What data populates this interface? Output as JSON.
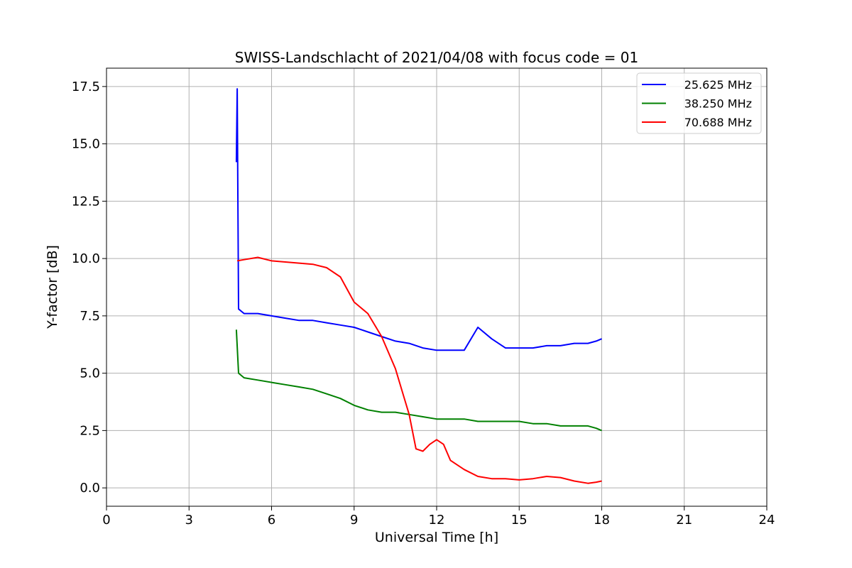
{
  "chart_data": {
    "type": "line",
    "title": "SWISS-Landschlacht of 2021/04/08 with focus code = 01",
    "xlabel": "Universal Time [h]",
    "ylabel": "Y-factor [dB]",
    "xlim": [
      0,
      24
    ],
    "ylim": [
      -0.8,
      18.3
    ],
    "xticks": [
      0,
      3,
      6,
      9,
      12,
      15,
      18,
      21,
      24
    ],
    "xtick_labels": [
      "0",
      "3",
      "6",
      "9",
      "12",
      "15",
      "18",
      "21",
      "24"
    ],
    "yticks": [
      0,
      2.5,
      5,
      7.5,
      10,
      12.5,
      15,
      17.5
    ],
    "ytick_labels": [
      "0.0",
      "2.5",
      "5.0",
      "7.5",
      "10.0",
      "12.5",
      "15.0",
      "17.5"
    ],
    "grid": true,
    "legend_position": "top-right",
    "series": [
      {
        "name": "25.625 MHz",
        "color": "#0000ff",
        "x": [
          4.72,
          4.75,
          4.8,
          5.0,
          5.5,
          6.0,
          6.5,
          7.0,
          7.5,
          8.0,
          8.5,
          9.0,
          9.5,
          10.0,
          10.5,
          11.0,
          11.5,
          12.0,
          12.5,
          13.0,
          13.5,
          14.0,
          14.5,
          15.0,
          15.5,
          16.0,
          16.5,
          17.0,
          17.5,
          17.8,
          18.0
        ],
        "values": [
          14.2,
          17.4,
          7.8,
          7.6,
          7.6,
          7.5,
          7.4,
          7.3,
          7.3,
          7.2,
          7.1,
          7.0,
          6.8,
          6.6,
          6.4,
          6.3,
          6.1,
          6.0,
          6.0,
          6.0,
          7.0,
          6.5,
          6.1,
          6.1,
          6.1,
          6.2,
          6.2,
          6.3,
          6.3,
          6.4,
          6.5
        ]
      },
      {
        "name": "38.250 MHz",
        "color": "#008000",
        "x": [
          4.72,
          4.8,
          5.0,
          5.5,
          6.0,
          6.5,
          7.0,
          7.5,
          8.0,
          8.5,
          9.0,
          9.5,
          10.0,
          10.5,
          11.0,
          11.5,
          12.0,
          12.5,
          13.0,
          13.5,
          14.0,
          14.5,
          15.0,
          15.5,
          16.0,
          16.5,
          17.0,
          17.5,
          17.8,
          18.0
        ],
        "values": [
          6.9,
          5.0,
          4.8,
          4.7,
          4.6,
          4.5,
          4.4,
          4.3,
          4.1,
          3.9,
          3.6,
          3.4,
          3.3,
          3.3,
          3.2,
          3.1,
          3.0,
          3.0,
          3.0,
          2.9,
          2.9,
          2.9,
          2.9,
          2.8,
          2.8,
          2.7,
          2.7,
          2.7,
          2.6,
          2.5
        ]
      },
      {
        "name": "70.688 MHz",
        "color": "#ff0000",
        "x": [
          4.75,
          5.0,
          5.5,
          6.0,
          6.5,
          7.0,
          7.5,
          8.0,
          8.5,
          9.0,
          9.5,
          10.0,
          10.5,
          10.8,
          11.0,
          11.25,
          11.5,
          11.75,
          12.0,
          12.25,
          12.5,
          13.0,
          13.5,
          14.0,
          14.5,
          15.0,
          15.5,
          16.0,
          16.5,
          17.0,
          17.5,
          17.8,
          18.0
        ],
        "values": [
          9.9,
          9.95,
          10.05,
          9.9,
          9.85,
          9.8,
          9.75,
          9.6,
          9.2,
          8.1,
          7.6,
          6.6,
          5.2,
          4.0,
          3.2,
          1.7,
          1.6,
          1.9,
          2.1,
          1.9,
          1.2,
          0.8,
          0.5,
          0.4,
          0.4,
          0.35,
          0.4,
          0.5,
          0.45,
          0.3,
          0.2,
          0.25,
          0.3
        ]
      }
    ]
  }
}
